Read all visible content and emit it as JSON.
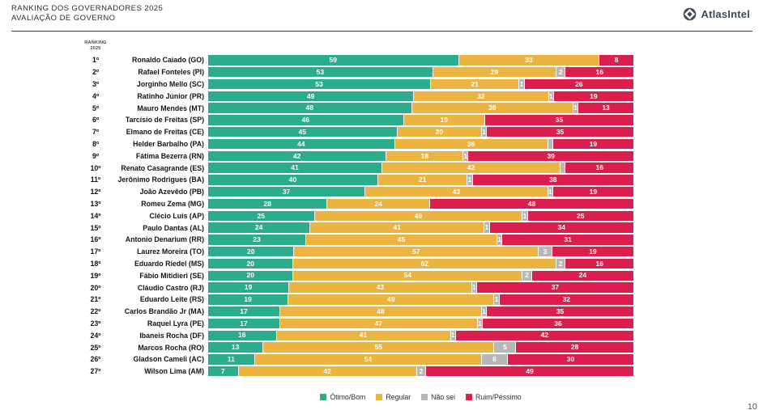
{
  "header": {
    "title_line1": "RANKING DOS GOVERNADORES 2025",
    "title_line2": "AVALIAÇÃO DE GOVERNO",
    "brand": "AtlasIntel"
  },
  "column_header": {
    "line1": "RANKING",
    "line2": "2025"
  },
  "page_number": "10",
  "colors": {
    "otimo_bom": "#2bac8c",
    "regular": "#ebb440",
    "nao_sei": "#b7b7b7",
    "ruim_pessimo": "#dc1e4c",
    "brand_navy": "#3d4a5c"
  },
  "chart_data": {
    "type": "bar",
    "subtype": "horizontal-stacked-100percent",
    "title": "RANKING DOS GOVERNADORES 2025 — AVALIAÇÃO DE GOVERNO",
    "unit": "%",
    "legend_position": "bottom-center",
    "legend": [
      {
        "key": "otimo_bom",
        "label": "Ótimo/Bom",
        "color": "#2bac8c"
      },
      {
        "key": "regular",
        "label": "Regular",
        "color": "#ebb440"
      },
      {
        "key": "nao_sei",
        "label": "Não sei",
        "color": "#b7b7b7"
      },
      {
        "key": "ruim_pessimo",
        "label": "Ruim/Péssimo",
        "color": "#dc1e4c"
      }
    ],
    "rows": [
      {
        "rank": "1º",
        "name": "Ronaldo Caiado (GO)",
        "otimo_bom": 59,
        "regular": 33,
        "nao_sei": 0,
        "ruim_pessimo": 8
      },
      {
        "rank": "2º",
        "name": "Rafael Fonteles (PI)",
        "otimo_bom": 53,
        "regular": 29,
        "nao_sei": 2,
        "ruim_pessimo": 16
      },
      {
        "rank": "3º",
        "name": "Jorginho Mello (SC)",
        "otimo_bom": 53,
        "regular": 21,
        "nao_sei": 1,
        "ruim_pessimo": 26
      },
      {
        "rank": "4º",
        "name": "Ratinho Júnior (PR)",
        "otimo_bom": 49,
        "regular": 32,
        "nao_sei": 1,
        "ruim_pessimo": 19
      },
      {
        "rank": "5º",
        "name": "Mauro Mendes (MT)",
        "otimo_bom": 48,
        "regular": 38,
        "nao_sei": 1,
        "ruim_pessimo": 13
      },
      {
        "rank": "6º",
        "name": "Tarcísio de Freitas (SP)",
        "otimo_bom": 46,
        "regular": 19,
        "nao_sei": 0,
        "ruim_pessimo": 35
      },
      {
        "rank": "7º",
        "name": "Elmano de Freitas (CE)",
        "otimo_bom": 45,
        "regular": 20,
        "nao_sei": 1,
        "ruim_pessimo": 35
      },
      {
        "rank": "8º",
        "name": "Helder Barbalho (PA)",
        "otimo_bom": 44,
        "regular": 36,
        "nao_sei": 1,
        "ruim_pessimo": 19,
        "nao_sei_unlabeled": true
      },
      {
        "rank": "9º",
        "name": "Fátima Bezerra (RN)",
        "otimo_bom": 42,
        "regular": 18,
        "nao_sei": 1,
        "ruim_pessimo": 39
      },
      {
        "rank": "10º",
        "name": "Renato Casagrande (ES)",
        "otimo_bom": 41,
        "regular": 42,
        "nao_sei": 1,
        "ruim_pessimo": 16,
        "nao_sei_unlabeled": true
      },
      {
        "rank": "11º",
        "name": "Jerônimo Rodrigues (BA)",
        "otimo_bom": 40,
        "regular": 21,
        "nao_sei": 1,
        "ruim_pessimo": 38
      },
      {
        "rank": "12º",
        "name": "João Azevêdo (PB)",
        "otimo_bom": 37,
        "regular": 43,
        "nao_sei": 1,
        "ruim_pessimo": 19
      },
      {
        "rank": "13º",
        "name": "Romeu Zema (MG)",
        "otimo_bom": 28,
        "regular": 24,
        "nao_sei": 0,
        "ruim_pessimo": 48
      },
      {
        "rank": "14º",
        "name": "Clécio Luis (AP)",
        "otimo_bom": 25,
        "regular": 49,
        "nao_sei": 1,
        "ruim_pessimo": 25
      },
      {
        "rank": "15º",
        "name": "Paulo Dantas (AL)",
        "otimo_bom": 24,
        "regular": 41,
        "nao_sei": 1,
        "ruim_pessimo": 34
      },
      {
        "rank": "16º",
        "name": "Antonio Denarium (RR)",
        "otimo_bom": 23,
        "regular": 45,
        "nao_sei": 1,
        "ruim_pessimo": 31
      },
      {
        "rank": "17º",
        "name": "Laurez Moreira (TO)",
        "otimo_bom": 20,
        "regular": 57,
        "nao_sei": 3,
        "ruim_pessimo": 19
      },
      {
        "rank": "18º",
        "name": "Eduardo Riedel (MS)",
        "otimo_bom": 20,
        "regular": 62,
        "nao_sei": 2,
        "ruim_pessimo": 16
      },
      {
        "rank": "19º",
        "name": "Fábio Mitidieri (SE)",
        "otimo_bom": 20,
        "regular": 54,
        "nao_sei": 2,
        "ruim_pessimo": 24
      },
      {
        "rank": "20º",
        "name": "Cláudio Castro (RJ)",
        "otimo_bom": 19,
        "regular": 43,
        "nao_sei": 1,
        "ruim_pessimo": 37
      },
      {
        "rank": "21º",
        "name": "Eduardo Leite (RS)",
        "otimo_bom": 19,
        "regular": 49,
        "nao_sei": 1,
        "ruim_pessimo": 32
      },
      {
        "rank": "22º",
        "name": "Carlos Brandão Jr (MA)",
        "otimo_bom": 17,
        "regular": 48,
        "nao_sei": 1,
        "ruim_pessimo": 35
      },
      {
        "rank": "23º",
        "name": "Raquel Lyra (PE)",
        "otimo_bom": 17,
        "regular": 47,
        "nao_sei": 1,
        "ruim_pessimo": 36
      },
      {
        "rank": "24º",
        "name": "Ibaneis Rocha (DF)",
        "otimo_bom": 16,
        "regular": 41,
        "nao_sei": 1,
        "ruim_pessimo": 42
      },
      {
        "rank": "25º",
        "name": "Marcos Rocha (RO)",
        "otimo_bom": 13,
        "regular": 55,
        "nao_sei": 5,
        "ruim_pessimo": 28
      },
      {
        "rank": "26º",
        "name": "Gladson Cameli (AC)",
        "otimo_bom": 11,
        "regular": 54,
        "nao_sei": 6,
        "ruim_pessimo": 30
      },
      {
        "rank": "27º",
        "name": "Wilson Lima (AM)",
        "otimo_bom": 7,
        "regular": 42,
        "nao_sei": 2,
        "ruim_pessimo": 49
      }
    ]
  }
}
